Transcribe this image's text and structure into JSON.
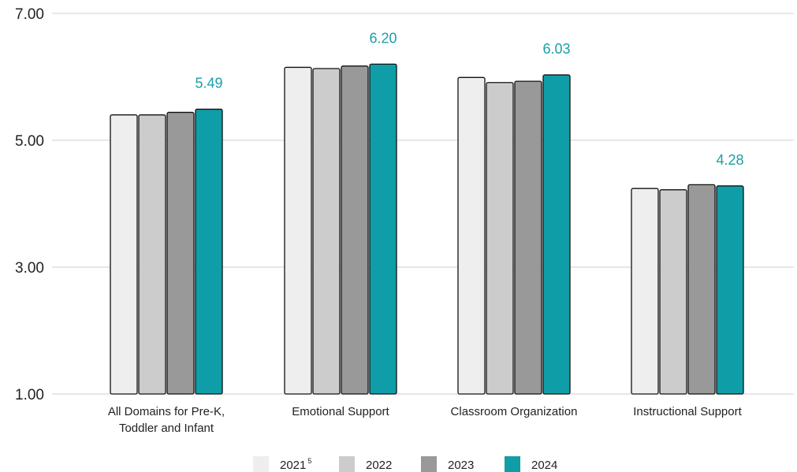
{
  "chart_data": {
    "type": "bar",
    "categories": [
      [
        "All Domains for Pre-K,",
        "Toddler and Infant"
      ],
      [
        "Emotional Support"
      ],
      [
        "Classroom Organization"
      ],
      [
        "Instructional Support"
      ]
    ],
    "series": [
      {
        "name": "2021",
        "name_sup": "5",
        "color": "#eeeeee",
        "values": [
          5.4,
          6.15,
          5.99,
          4.24
        ]
      },
      {
        "name": "2022",
        "color": "#cccccc",
        "values": [
          5.4,
          6.13,
          5.91,
          4.22
        ]
      },
      {
        "name": "2023",
        "color": "#999999",
        "values": [
          5.44,
          6.17,
          5.93,
          4.3
        ]
      },
      {
        "name": "2024",
        "color": "#0f9ea8",
        "values": [
          5.49,
          6.2,
          6.03,
          4.28
        ]
      }
    ],
    "data_labels": [
      "5.49",
      "6.20",
      "6.03",
      "4.28"
    ],
    "data_label_series": "2024",
    "data_label_color": "#1a9ea8",
    "yticks": [
      "1.00",
      "3.00",
      "5.00",
      "7.00"
    ],
    "ylim": [
      1,
      7
    ],
    "grid": true,
    "legend_position": "bottom",
    "title": "",
    "xlabel": "",
    "ylabel": ""
  }
}
